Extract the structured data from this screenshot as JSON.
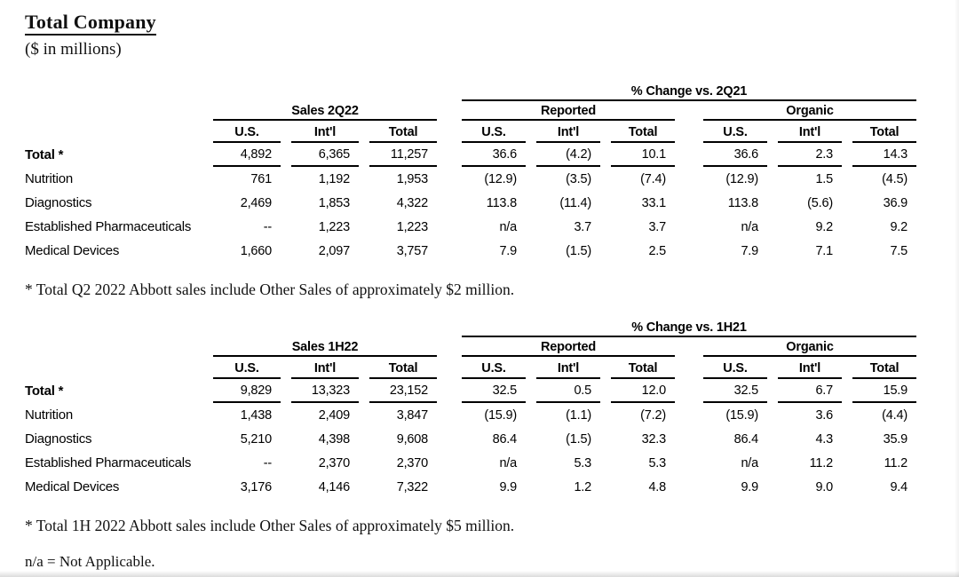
{
  "page": {
    "title": "Total Company",
    "subtitle": "($ in millions)",
    "text_color": "#000000",
    "background_color": "#ffffff"
  },
  "tables": {
    "q2": {
      "change_header": "% Change vs. 2Q21",
      "groups": [
        "Sales 2Q22",
        "Reported",
        "Organic"
      ],
      "subheaders": [
        "U.S.",
        "Int'l",
        "Total"
      ],
      "rows": [
        {
          "label": "Total *",
          "cells": [
            "4,892",
            "6,365",
            "11,257",
            "36.6",
            "(4.2)",
            "10.1",
            "36.6",
            "2.3",
            "14.3"
          ]
        },
        {
          "label": "Nutrition",
          "cells": [
            "761",
            "1,192",
            "1,953",
            "(12.9)",
            "(3.5)",
            "(7.4)",
            "(12.9)",
            "1.5",
            "(4.5)"
          ]
        },
        {
          "label": "Diagnostics",
          "cells": [
            "2,469",
            "1,853",
            "4,322",
            "113.8",
            "(11.4)",
            "33.1",
            "113.8",
            "(5.6)",
            "36.9"
          ]
        },
        {
          "label": "Established Pharmaceuticals",
          "cells": [
            "--",
            "1,223",
            "1,223",
            "n/a",
            "3.7",
            "3.7",
            "n/a",
            "9.2",
            "9.2"
          ]
        },
        {
          "label": "Medical Devices",
          "cells": [
            "1,660",
            "2,097",
            "3,757",
            "7.9",
            "(1.5)",
            "2.5",
            "7.9",
            "7.1",
            "7.5"
          ]
        }
      ],
      "footnote": "* Total Q2 2022 Abbott sales include Other Sales of approximately $2 million."
    },
    "h1": {
      "change_header": "% Change vs. 1H21",
      "groups": [
        "Sales 1H22",
        "Reported",
        "Organic"
      ],
      "subheaders": [
        "U.S.",
        "Int'l",
        "Total"
      ],
      "rows": [
        {
          "label": "Total *",
          "cells": [
            "9,829",
            "13,323",
            "23,152",
            "32.5",
            "0.5",
            "12.0",
            "32.5",
            "6.7",
            "15.9"
          ]
        },
        {
          "label": "Nutrition",
          "cells": [
            "1,438",
            "2,409",
            "3,847",
            "(15.9)",
            "(1.1)",
            "(7.2)",
            "(15.9)",
            "3.6",
            "(4.4)"
          ]
        },
        {
          "label": "Diagnostics",
          "cells": [
            "5,210",
            "4,398",
            "9,608",
            "86.4",
            "(1.5)",
            "32.3",
            "86.4",
            "4.3",
            "35.9"
          ]
        },
        {
          "label": "Established Pharmaceuticals",
          "cells": [
            "--",
            "2,370",
            "2,370",
            "n/a",
            "5.3",
            "5.3",
            "n/a",
            "11.2",
            "11.2"
          ]
        },
        {
          "label": "Medical Devices",
          "cells": [
            "3,176",
            "4,146",
            "7,322",
            "9.9",
            "1.2",
            "4.8",
            "9.9",
            "9.0",
            "9.4"
          ]
        }
      ],
      "footnote": "* Total 1H 2022 Abbott sales include Other Sales of approximately $5 million."
    }
  },
  "notes": {
    "na_note": "n/a = Not Applicable."
  }
}
